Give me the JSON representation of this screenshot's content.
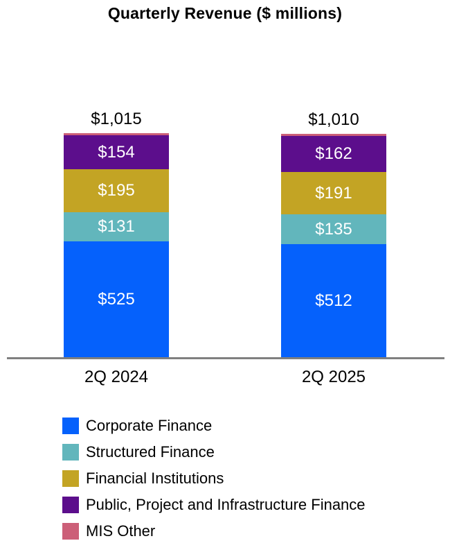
{
  "chart_data": {
    "type": "bar",
    "subtype": "stacked-vertical",
    "title": "Quarterly Revenue ($ millions)",
    "categories": [
      "2Q 2024",
      "2Q 2025"
    ],
    "totals": [
      "$1,015",
      "$1,010"
    ],
    "total_values": [
      1015,
      1010
    ],
    "series": [
      {
        "name": "Corporate Finance",
        "color": "#0561fc",
        "values": [
          525,
          512
        ],
        "labels": [
          "$525",
          "$512"
        ]
      },
      {
        "name": "Structured Finance",
        "color": "#62b6bc",
        "values": [
          131,
          135
        ],
        "labels": [
          "$131",
          "$135"
        ]
      },
      {
        "name": "Financial Institutions",
        "color": "#c3a424",
        "values": [
          195,
          191
        ],
        "labels": [
          "$195",
          "$191"
        ]
      },
      {
        "name": "Public, Project and Infrastructure Finance",
        "color": "#5c0e8c",
        "values": [
          154,
          162
        ],
        "labels": [
          "$154",
          "$162"
        ]
      },
      {
        "name": "MIS Other",
        "color": "#cc5f78",
        "values": [
          10,
          10
        ],
        "labels": [
          "",
          ""
        ]
      }
    ],
    "grid": false,
    "legend_position": "bottom-left",
    "axis_line_color": "#7f7f7f",
    "value_label_color_inside": "#ffffff",
    "value_label_color_total": "#000000"
  }
}
